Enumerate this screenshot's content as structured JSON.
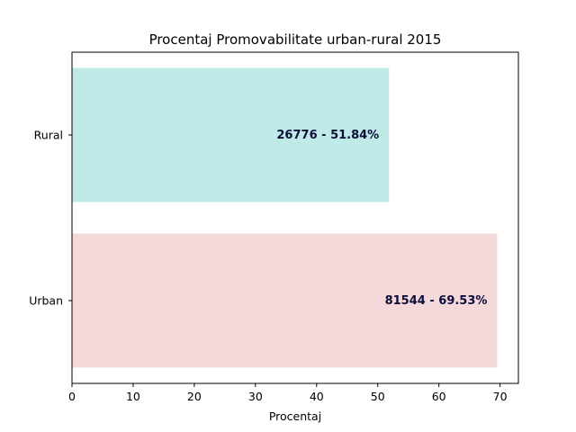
{
  "chart_data": {
    "type": "bar",
    "orientation": "horizontal",
    "title": "Procentaj Promovabilitate urban-rural 2015",
    "xlabel": "Procentaj",
    "ylabel": "",
    "categories": [
      "Rural",
      "Urban"
    ],
    "values": [
      51.84,
      69.53
    ],
    "data_labels": [
      "26776 - 51.84%",
      "81544 - 69.53%"
    ],
    "colors": [
      "#bfeae8",
      "#f4d8da"
    ],
    "xlim": [
      0,
      73
    ],
    "xticks": [
      0,
      10,
      20,
      30,
      40,
      50,
      60,
      70
    ],
    "grid": false,
    "legend": "none"
  }
}
